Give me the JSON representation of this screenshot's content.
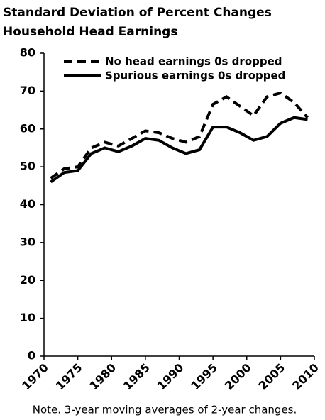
{
  "chart_data": {
    "type": "line",
    "title": "Standard Deviation of Percent Changes",
    "subtitle": "Household Head Earnings",
    "note": "Note. 3-year moving averages of 2-year changes.",
    "x": [
      1971,
      1973,
      1975,
      1977,
      1979,
      1981,
      1983,
      1985,
      1987,
      1989,
      1991,
      1993,
      1995,
      1997,
      1999,
      2001,
      2003,
      2005,
      2007,
      2009
    ],
    "series": [
      {
        "name": "No head earnings 0s dropped",
        "color": "#000000",
        "linestyle": "dashed",
        "values": [
          47,
          49.5,
          50,
          55,
          56.5,
          55.5,
          57.5,
          59.5,
          59,
          57.5,
          56.5,
          58,
          66.5,
          68.5,
          66,
          63.5,
          68.5,
          69.5,
          67,
          63
        ]
      },
      {
        "name": "Spurious earnings 0s dropped",
        "color": "#000000",
        "linestyle": "solid",
        "values": [
          46,
          48.5,
          49,
          53.5,
          55,
          54,
          55.5,
          57.5,
          57,
          55,
          53.5,
          54.5,
          60.5,
          60.5,
          59,
          57,
          58,
          61.5,
          63,
          62.5
        ]
      }
    ],
    "xlim": [
      1970,
      2010
    ],
    "xticks": [
      1970,
      1975,
      1980,
      1985,
      1990,
      1995,
      2000,
      2005,
      2010
    ],
    "ylim": [
      0,
      80
    ],
    "yticks": [
      0,
      10,
      20,
      30,
      40,
      50,
      60,
      70,
      80
    ],
    "legend": "upper left"
  }
}
